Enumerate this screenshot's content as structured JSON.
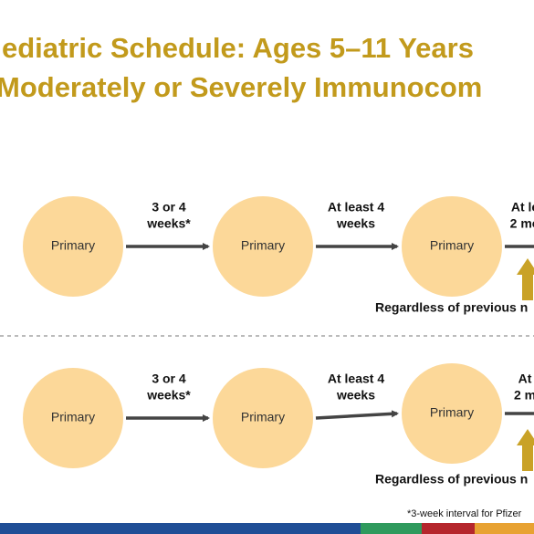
{
  "header": {
    "title_lines": [
      "ediatric Schedule: Ages 5–11 Years",
      "Moderately or Severely Immunocom"
    ]
  },
  "rows": [
    {
      "nodes": [
        "Primary",
        "Primary",
        "Primary"
      ],
      "intervals": [
        [
          "3 or 4",
          "weeks*"
        ],
        [
          "At least 4",
          "weeks"
        ],
        [
          "At le",
          "2 mo"
        ]
      ],
      "note": "Regardless of previous n"
    },
    {
      "nodes": [
        "Primary",
        "Primary",
        "Primary"
      ],
      "intervals": [
        [
          "3 or 4",
          "weeks*"
        ],
        [
          "At least 4",
          "weeks"
        ],
        [
          "At",
          "2 m"
        ]
      ],
      "note": "Regardless of previous n"
    }
  ],
  "footnote": "*3-week interval for Pfizer"
}
